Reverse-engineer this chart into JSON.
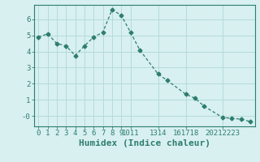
{
  "x": [
    0,
    1,
    2,
    3,
    4,
    5,
    6,
    7,
    8,
    9,
    10,
    11,
    13,
    14,
    16,
    17,
    18,
    20,
    21,
    22,
    23
  ],
  "y": [
    4.9,
    5.1,
    4.5,
    4.35,
    3.75,
    4.35,
    4.9,
    5.2,
    6.6,
    6.25,
    5.2,
    4.1,
    2.6,
    2.2,
    1.35,
    1.1,
    0.6,
    -0.1,
    -0.15,
    -0.2,
    -0.35
  ],
  "line_color": "#2e7d6e",
  "marker": "D",
  "marker_size": 2.5,
  "bg_color": "#d8f0f0",
  "grid_color": "#b0d8d8",
  "xlabel": "Humidex (Indice chaleur)",
  "xlim": [
    -0.5,
    23.5
  ],
  "ylim": [
    -0.65,
    6.9
  ],
  "xtick_positions": [
    0,
    1,
    2,
    3,
    4,
    5,
    6,
    7,
    8,
    9,
    10,
    13,
    16,
    20
  ],
  "xtick_labels": [
    "0",
    "1",
    "2",
    "3",
    "4",
    "5",
    "6",
    "7",
    "8",
    "9",
    "1011",
    "1314",
    "161718",
    "20212223"
  ],
  "yticks": [
    0,
    1,
    2,
    3,
    4,
    5,
    6
  ],
  "ytick_labels": [
    "-0",
    "1",
    "2",
    "3",
    "4",
    "5",
    "6"
  ],
  "spine_color": "#2e7d6e",
  "tick_color": "#2e7d6e",
  "label_color": "#2e7d6e",
  "font_size": 6.5,
  "xlabel_fontsize": 8.0
}
